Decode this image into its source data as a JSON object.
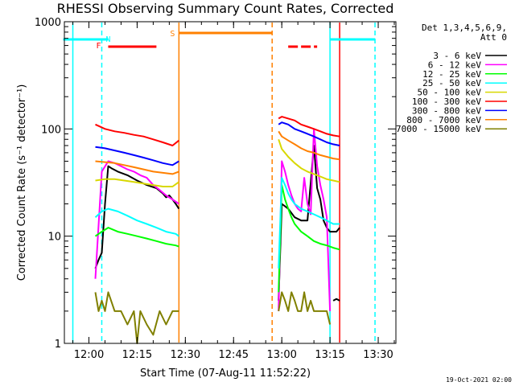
{
  "chart_data": {
    "type": "line",
    "title": "RHESSI Observing Summary Count Rates, Corrected",
    "xlabel": "Start Time (07-Aug-11 11:52:22)",
    "ylabel": "Corrected Count Rate (s⁻¹ detector⁻¹)",
    "y_scale": "log",
    "ylim": [
      1,
      1000
    ],
    "xlim": [
      "11:52:22",
      "13:35:30"
    ],
    "x_ticks": [
      "12:00",
      "12:15",
      "12:30",
      "12:45",
      "13:00",
      "13:15",
      "13:30"
    ],
    "y_ticks": [
      "1",
      "10",
      "100",
      "1000"
    ],
    "detector_note": "Det 1,3,4,5,6,9,",
    "attenuator_note": "Att 0",
    "timestamp": "19-Oct-2021 02:00",
    "flags": [
      {
        "label": "F",
        "color": "#ff0000",
        "segments": [
          [
            "12:06",
            "12:21"
          ],
          [
            "13:02",
            "13:05"
          ],
          [
            "13:06",
            "13:09"
          ],
          [
            "13:10",
            "13:11"
          ]
        ]
      },
      {
        "label": "N",
        "color": "#00ffff",
        "segments": [
          [
            "11:52",
            "12:06"
          ],
          [
            "13:15",
            "13:29"
          ]
        ]
      },
      {
        "label": "S",
        "color": "#ff8000",
        "segments": [
          [
            "12:28",
            "12:57"
          ]
        ]
      }
    ],
    "bands": [
      {
        "name": "3 - 6 keV",
        "color": "#000000"
      },
      {
        "name": "6 - 12 keV",
        "color": "#ff00ff"
      },
      {
        "name": "12 - 25 keV",
        "color": "#00ff00"
      },
      {
        "name": "25 - 50 keV",
        "color": "#00ffff"
      },
      {
        "name": "50 - 100 keV",
        "color": "#d8d800"
      },
      {
        "name": "100 - 300 keV",
        "color": "#ff0000"
      },
      {
        "name": "300 - 800 keV",
        "color": "#0000ff"
      },
      {
        "name": "800 - 7000 keV",
        "color": "#ff8000"
      },
      {
        "name": "7000 - 15000 keV",
        "color": "#808000"
      }
    ],
    "vlines": [
      {
        "time": "11:55",
        "color": "#00ffff",
        "style": "solid"
      },
      {
        "time": "12:04",
        "color": "#00ffff",
        "style": "dashed"
      },
      {
        "time": "12:28",
        "color": "#ff8000",
        "style": "solid"
      },
      {
        "time": "12:57",
        "color": "#ff8000",
        "style": "dashed"
      },
      {
        "time": "13:15",
        "color": "#00ffff",
        "style": "solid"
      },
      {
        "time": "13:18",
        "color": "#ff0000",
        "style": "solid"
      },
      {
        "time": "13:29",
        "color": "#00ffff",
        "style": "dashed"
      }
    ],
    "series": [
      {
        "name": "3 - 6 keV",
        "color": "#000000",
        "segments": [
          {
            "x": [
              "12:02",
              "12:03",
              "12:04",
              "12:05",
              "12:06",
              "12:07",
              "12:09",
              "12:12",
              "12:15",
              "12:18",
              "12:21",
              "12:23",
              "12:24",
              "12:25",
              "12:26",
              "12:27",
              "12:28"
            ],
            "y": [
              5,
              6,
              7,
              20,
              45,
              43,
              40,
              37,
              33,
              30,
              28,
              25,
              23,
              24,
              22,
              20,
              18
            ]
          },
          {
            "x": [
              "12:59",
              "13:00",
              "13:02",
              "13:04",
              "13:06",
              "13:08",
              "13:10",
              "13:11",
              "13:12",
              "13:13",
              "13:14",
              "13:15",
              "13:16",
              "13:17",
              "13:18"
            ],
            "y": [
              2.5,
              20,
              18,
              15,
              14,
              14,
              70,
              28,
              22,
              14,
              12,
              11,
              11,
              11,
              12
            ]
          },
          {
            "x": [
              "13:16",
              "13:17",
              "13:18"
            ],
            "y": [
              2.5,
              2.6,
              2.5
            ]
          }
        ]
      },
      {
        "name": "6 - 12 keV",
        "color": "#ff00ff",
        "segments": [
          {
            "x": [
              "12:02",
              "12:04",
              "12:06",
              "12:08",
              "12:10",
              "12:12",
              "12:14",
              "12:16",
              "12:18",
              "12:20",
              "12:22",
              "12:24",
              "12:26",
              "12:28"
            ],
            "y": [
              4,
              40,
              50,
              48,
              45,
              42,
              40,
              37,
              35,
              30,
              27,
              24,
              22,
              20
            ]
          },
          {
            "x": [
              "12:59",
              "13:00",
              "13:01",
              "13:02",
              "13:03",
              "13:04",
              "13:05",
              "13:06",
              "13:07",
              "13:08",
              "13:09",
              "13:10",
              "13:11",
              "13:12",
              "13:13",
              "13:14",
              "13:15"
            ],
            "y": [
              2,
              50,
              40,
              30,
              24,
              20,
              18,
              17,
              35,
              20,
              16,
              100,
              45,
              30,
              22,
              15,
              2
            ]
          }
        ]
      },
      {
        "name": "12 - 25 keV",
        "color": "#00ff00",
        "segments": [
          {
            "x": [
              "12:02",
              "12:04",
              "12:06",
              "12:09",
              "12:12",
              "12:15",
              "12:18",
              "12:21",
              "12:24",
              "12:27",
              "12:28"
            ],
            "y": [
              10,
              11,
              12,
              11,
              10.5,
              10,
              9.5,
              9,
              8.5,
              8.2,
              8
            ]
          },
          {
            "x": [
              "12:59",
              "13:00",
              "13:01",
              "13:02",
              "13:03",
              "13:04",
              "13:06",
              "13:08",
              "13:10",
              "13:12",
              "13:14",
              "13:16",
              "13:18"
            ],
            "y": [
              3,
              30,
              22,
              18,
              15,
              13,
              11,
              10,
              9,
              8.5,
              8.2,
              7.8,
              7.5
            ]
          }
        ]
      },
      {
        "name": "25 - 50 keV",
        "color": "#00ffff",
        "segments": [
          {
            "x": [
              "12:02",
              "12:04",
              "12:06",
              "12:09",
              "12:12",
              "12:15",
              "12:18",
              "12:21",
              "12:24",
              "12:27",
              "12:28"
            ],
            "y": [
              15,
              17,
              18,
              17,
              15.5,
              14,
              13,
              12,
              11,
              10.5,
              10
            ]
          },
          {
            "x": [
              "12:59",
              "13:00",
              "13:01",
              "13:02",
              "13:03",
              "13:04",
              "13:06",
              "13:08",
              "13:10",
              "13:12",
              "13:14",
              "13:16",
              "13:18"
            ],
            "y": [
              5,
              35,
              30,
              25,
              22,
              20,
              18,
              17,
              16,
              15,
              14,
              13,
              13
            ]
          }
        ]
      },
      {
        "name": "50 - 100 keV",
        "color": "#d8d800",
        "segments": [
          {
            "x": [
              "12:02",
              "12:05",
              "12:08",
              "12:11",
              "12:14",
              "12:17",
              "12:20",
              "12:23",
              "12:26",
              "12:28"
            ],
            "y": [
              33,
              34,
              34,
              33,
              32,
              31,
              30,
              29,
              29,
              32
            ]
          },
          {
            "x": [
              "12:59",
              "13:00",
              "13:02",
              "13:04",
              "13:06",
              "13:08",
              "13:10",
              "13:12",
              "13:14",
              "13:16",
              "13:18"
            ],
            "y": [
              80,
              65,
              55,
              48,
              43,
              40,
              38,
              36,
              34,
              33,
              32
            ]
          }
        ]
      },
      {
        "name": "100 - 300 keV",
        "color": "#ff0000",
        "segments": [
          {
            "x": [
              "12:02",
              "12:05",
              "12:08",
              "12:11",
              "12:14",
              "12:17",
              "12:20",
              "12:23",
              "12:26",
              "12:28"
            ],
            "y": [
              110,
              100,
              95,
              92,
              88,
              85,
              80,
              75,
              70,
              78
            ]
          },
          {
            "x": [
              "12:59",
              "13:00",
              "13:02",
              "13:04",
              "13:06",
              "13:08",
              "13:10",
              "13:12",
              "13:14",
              "13:16",
              "13:18"
            ],
            "y": [
              125,
              130,
              125,
              120,
              110,
              105,
              100,
              95,
              90,
              87,
              85
            ]
          }
        ]
      },
      {
        "name": "300 - 800 keV",
        "color": "#0000ff",
        "segments": [
          {
            "x": [
              "12:02",
              "12:05",
              "12:08",
              "12:11",
              "12:14",
              "12:17",
              "12:20",
              "12:23",
              "12:26",
              "12:28"
            ],
            "y": [
              68,
              66,
              63,
              60,
              57,
              54,
              51,
              48,
              46,
              50
            ]
          },
          {
            "x": [
              "12:59",
              "13:00",
              "13:02",
              "13:04",
              "13:06",
              "13:08",
              "13:10",
              "13:12",
              "13:14",
              "13:16",
              "13:18"
            ],
            "y": [
              110,
              115,
              110,
              100,
              95,
              90,
              85,
              80,
              75,
              72,
              70
            ]
          }
        ]
      },
      {
        "name": "800 - 7000 keV",
        "color": "#ff8000",
        "segments": [
          {
            "x": [
              "12:02",
              "12:05",
              "12:08",
              "12:11",
              "12:14",
              "12:17",
              "12:20",
              "12:23",
              "12:26",
              "12:28"
            ],
            "y": [
              50,
              49,
              48,
              46,
              44,
              42,
              40,
              39,
              38,
              40
            ]
          },
          {
            "x": [
              "12:59",
              "13:00",
              "13:02",
              "13:04",
              "13:06",
              "13:08",
              "13:10",
              "13:12",
              "13:14",
              "13:16",
              "13:18"
            ],
            "y": [
              95,
              85,
              78,
              72,
              66,
              62,
              60,
              57,
              55,
              53,
              52
            ]
          }
        ]
      },
      {
        "name": "7000 - 15000 keV",
        "color": "#808000",
        "segments": [
          {
            "x": [
              "12:02",
              "12:03",
              "12:04",
              "12:05",
              "12:06",
              "12:08",
              "12:10",
              "12:12",
              "12:14",
              "12:15",
              "12:16",
              "12:18",
              "12:20",
              "12:22",
              "12:24",
              "12:26",
              "12:28"
            ],
            "y": [
              3,
              2,
              2.5,
              2,
              3,
              2,
              2,
              1.5,
              2,
              1,
              2,
              1.5,
              1.2,
              2,
              1.5,
              2,
              2
            ]
          },
          {
            "x": [
              "12:59",
              "13:00",
              "13:01",
              "13:02",
              "13:03",
              "13:04",
              "13:05",
              "13:06",
              "13:07",
              "13:08",
              "13:09",
              "13:10",
              "13:12",
              "13:14",
              "13:15"
            ],
            "y": [
              2,
              3,
              2.5,
              2,
              3,
              2.5,
              2,
              2,
              3,
              2,
              2.5,
              2,
              2,
              2,
              1.5
            ]
          }
        ]
      }
    ]
  }
}
